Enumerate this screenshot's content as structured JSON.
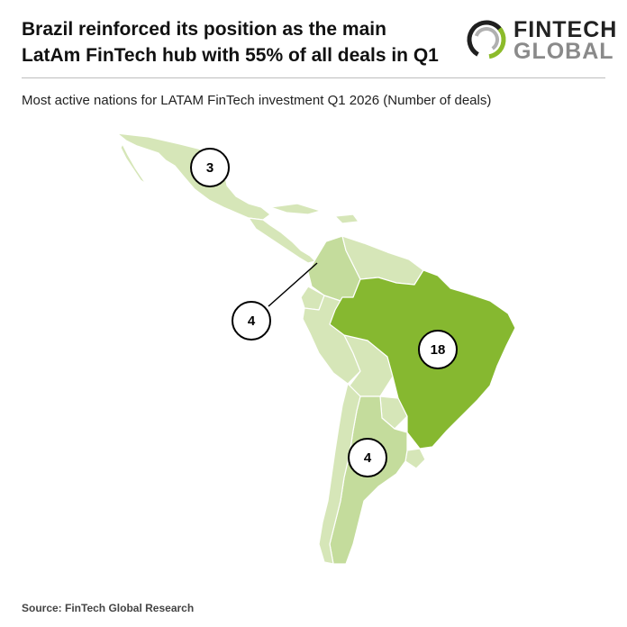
{
  "header": {
    "headline": "Brazil reinforced its position as the main LatAm FinTech hub with 55% of all deals in Q1"
  },
  "logo": {
    "line1": "FINTECH",
    "line2": "GLOBAL",
    "icon": "ring-logo-icon",
    "colors": {
      "ring_dark": "#1f1f1f",
      "ring_green": "#8cbb2a",
      "ring_grey": "#b0b0b0"
    }
  },
  "subtitle": "Most active nations for LATAM FinTech investment Q1 2026 (Number of deals)",
  "map": {
    "colors": {
      "high": "#86b830",
      "low": "#d6e6b8",
      "mid": "#c4dc9c",
      "border": "#ffffff"
    },
    "labels": [
      {
        "country": "Mexico",
        "deals": "3"
      },
      {
        "country": "Colombia",
        "deals": "4"
      },
      {
        "country": "Brazil",
        "deals": "18"
      },
      {
        "country": "Argentina",
        "deals": "4"
      }
    ]
  },
  "footer": {
    "source": "Source: FinTech Global Research"
  }
}
